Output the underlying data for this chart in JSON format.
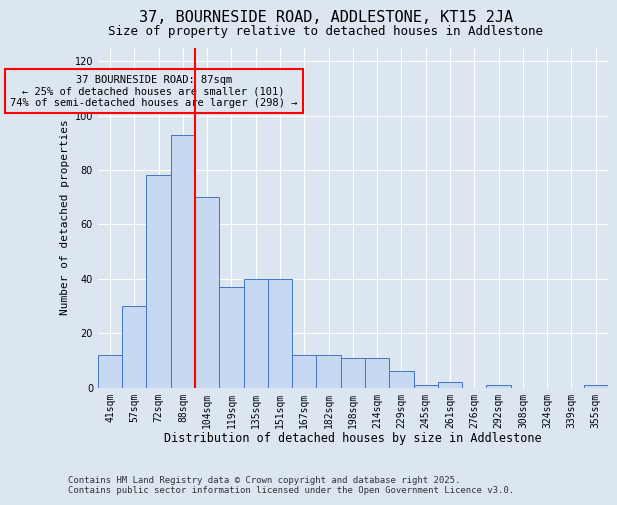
{
  "title": "37, BOURNESIDE ROAD, ADDLESTONE, KT15 2JA",
  "subtitle": "Size of property relative to detached houses in Addlestone",
  "xlabel": "Distribution of detached houses by size in Addlestone",
  "ylabel": "Number of detached properties",
  "categories": [
    "41sqm",
    "57sqm",
    "72sqm",
    "88sqm",
    "104sqm",
    "119sqm",
    "135sqm",
    "151sqm",
    "167sqm",
    "182sqm",
    "198sqm",
    "214sqm",
    "229sqm",
    "245sqm",
    "261sqm",
    "276sqm",
    "292sqm",
    "308sqm",
    "324sqm",
    "339sqm",
    "355sqm"
  ],
  "values": [
    12,
    30,
    78,
    93,
    70,
    37,
    40,
    40,
    12,
    12,
    11,
    11,
    6,
    1,
    2,
    0,
    1,
    0,
    0,
    0,
    1
  ],
  "bar_color": "#c6d9f0",
  "bar_edge_color": "#4472c4",
  "bg_color": "#dce6f1",
  "grid_color": "#ffffff",
  "vline_color": "#ff0000",
  "annotation_text": "37 BOURNESIDE ROAD: 87sqm\n← 25% of detached houses are smaller (101)\n74% of semi-detached houses are larger (298) →",
  "annotation_box_color": "#ff0000",
  "footer": "Contains HM Land Registry data © Crown copyright and database right 2025.\nContains public sector information licensed under the Open Government Licence v3.0.",
  "ylim": [
    0,
    125
  ],
  "yticks": [
    0,
    20,
    40,
    60,
    80,
    100,
    120
  ],
  "title_fontsize": 11,
  "subtitle_fontsize": 9,
  "xlabel_fontsize": 8.5,
  "ylabel_fontsize": 8,
  "tick_fontsize": 7,
  "footer_fontsize": 6.5,
  "annot_fontsize": 7.5,
  "vline_x_index": 3
}
